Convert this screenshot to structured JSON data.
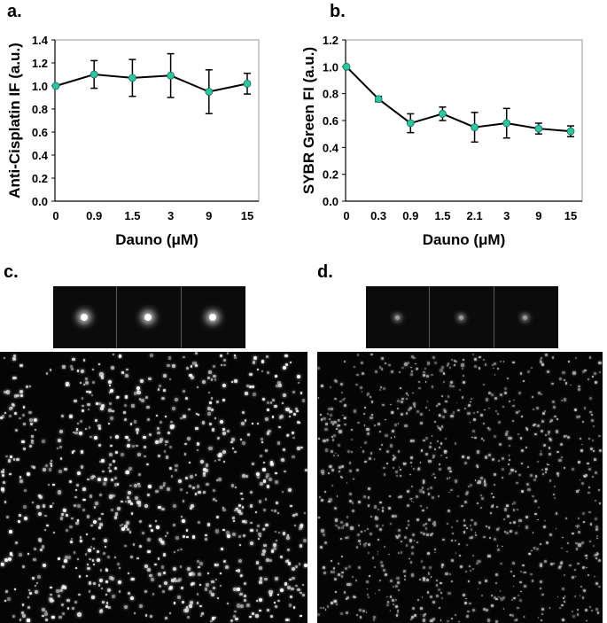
{
  "panels": {
    "a": "a.",
    "b": "b.",
    "c": "c.",
    "d": "d."
  },
  "chart_data": [
    {
      "id": "a",
      "type": "line",
      "title": "",
      "xlabel": "Dauno (μM)",
      "ylabel": "Anti-Cisplatin IF (a.u.)",
      "categories": [
        "0",
        "0.9",
        "1.5",
        "3",
        "9",
        "15"
      ],
      "values": [
        1.0,
        1.1,
        1.07,
        1.09,
        0.95,
        1.02
      ],
      "errors": [
        0.0,
        0.12,
        0.16,
        0.19,
        0.19,
        0.09
      ],
      "ylim": [
        0,
        1.4
      ],
      "yticks": [
        "0.0",
        "0.2",
        "0.4",
        "0.6",
        "0.8",
        "1.0",
        "1.2",
        "1.4"
      ],
      "grid": false,
      "marker_color": "#2ec4a0",
      "line_color": "#000000"
    },
    {
      "id": "b",
      "type": "line",
      "title": "",
      "xlabel": "Dauno (μM)",
      "ylabel": "SYBR Green FI (a.u.)",
      "categories": [
        "0",
        "0.3",
        "0.9",
        "1.5",
        "2.1",
        "3",
        "9",
        "15"
      ],
      "values": [
        1.0,
        0.76,
        0.58,
        0.65,
        0.55,
        0.58,
        0.54,
        0.52
      ],
      "errors": [
        0.0,
        0.02,
        0.07,
        0.05,
        0.11,
        0.11,
        0.04,
        0.04
      ],
      "ylim": [
        0,
        1.2
      ],
      "yticks": [
        "0.0",
        "0.2",
        "0.4",
        "0.6",
        "0.8",
        "1.0",
        "1.2"
      ],
      "grid": false,
      "marker_color": "#2ec4a0",
      "line_color": "#000000"
    }
  ],
  "images": {
    "c": {
      "spot_color": "#ffffff",
      "thumb_count": 3
    },
    "d": {
      "spot_color": "#dcdcdc",
      "thumb_count": 3
    }
  }
}
